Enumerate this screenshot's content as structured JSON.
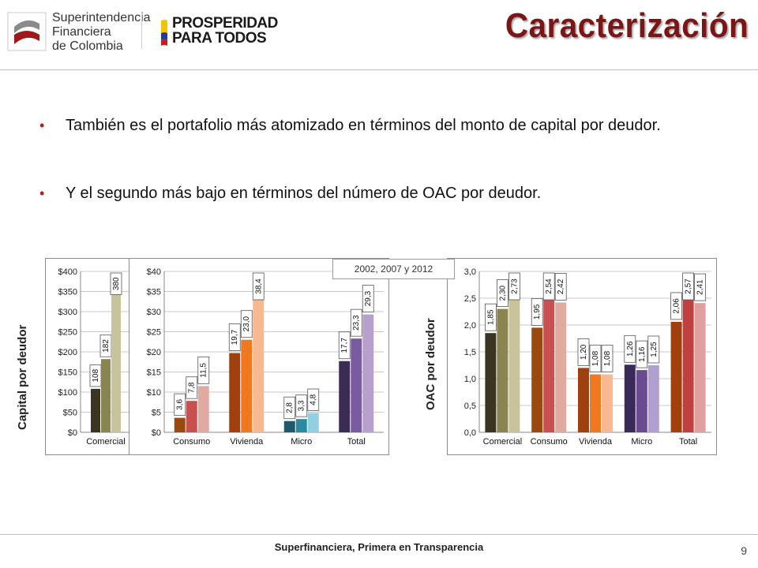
{
  "header": {
    "logo_sfc": {
      "line1": "Superintendencia",
      "line2": "Financiera",
      "line3": "de Colombia"
    },
    "logo_prosperidad": {
      "line1": "PROSPERIDAD",
      "line2": "PARA TODOS"
    },
    "title": "Caracterización"
  },
  "bullets": [
    "También es el portafolio más atomizado en términos del monto de capital por deudor.",
    "Y el segundo más bajo en términos del número de OAC por deudor."
  ],
  "annotation": "2002, 2007 y 2012",
  "side_labels": {
    "capital": "Capital por deudor",
    "oac": "OAC por deudor"
  },
  "footer": {
    "text": "Superfinanciera, Primera en Transparencia",
    "page": "9"
  },
  "colors": {
    "title": "#7a1616",
    "bullet": "#b22222",
    "Comercial": [
      "#3a3520",
      "#8a8450",
      "#c8c39a"
    ],
    "Consumo": [
      "#9a4a10",
      "#c85050",
      "#e0aaa0"
    ],
    "Vivienda": [
      "#a0400e",
      "#f07820",
      "#f8b890"
    ],
    "Micro": [
      "#1c5a6c",
      "#2a8aa0",
      "#90d0e0"
    ],
    "Total": [
      "#3c2c54",
      "#7a5aa0",
      "#b8a0cc"
    ],
    "OAC_Micro": [
      "#3a2a5a",
      "#6a4a90",
      "#b0a0d0"
    ],
    "OAC_Total": [
      "#a0400e",
      "#c04040",
      "#e0a0a0"
    ]
  },
  "chart_data": [
    {
      "type": "bar",
      "categories": [
        "Comercial"
      ],
      "series": [
        {
          "values": [
            108
          ]
        },
        {
          "values": [
            182
          ]
        },
        {
          "values": [
            380
          ]
        }
      ],
      "labels": [
        "108",
        "182",
        "380"
      ],
      "yticks": [
        "$0",
        "$50",
        "$100",
        "$150",
        "$200",
        "$250",
        "$300",
        "$350",
        "$400"
      ],
      "ylim": [
        0,
        400
      ],
      "grid": true
    },
    {
      "type": "bar",
      "categories": [
        "Consumo",
        "Vivienda",
        "Micro",
        "Total"
      ],
      "series": [
        {
          "values": [
            3.6,
            19.7,
            2.8,
            17.7
          ]
        },
        {
          "values": [
            7.8,
            23.0,
            3.3,
            23.3
          ]
        },
        {
          "values": [
            11.5,
            38.4,
            4.8,
            29.3
          ]
        }
      ],
      "labels": [
        [
          "3,6",
          "7,8",
          "11,5"
        ],
        [
          "19,7",
          "23,0",
          "38,4"
        ],
        [
          "2,8",
          "3,3",
          "4,8"
        ],
        [
          "17,7",
          "23,3",
          "29,3"
        ]
      ],
      "yticks": [
        "$0",
        "$5",
        "$10",
        "$15",
        "$20",
        "$25",
        "$30",
        "$35",
        "$40"
      ],
      "ylim": [
        0,
        40
      ],
      "grid": true
    },
    {
      "type": "bar",
      "categories": [
        "Comercial",
        "Consumo",
        "Vivienda",
        "Micro",
        "Total"
      ],
      "series": [
        {
          "values": [
            1.85,
            1.95,
            1.2,
            1.26,
            2.06
          ]
        },
        {
          "values": [
            2.3,
            2.54,
            1.08,
            1.16,
            2.57
          ]
        },
        {
          "values": [
            2.73,
            2.42,
            1.08,
            1.25,
            2.41
          ]
        }
      ],
      "labels": [
        [
          "1,85",
          "2,30",
          "2,73"
        ],
        [
          "1,95",
          "2,54",
          "2,42"
        ],
        [
          "1,20",
          "1,08",
          "1,08"
        ],
        [
          "1,26",
          "1,16",
          "1,25"
        ],
        [
          "2,06",
          "2,57",
          "2,41"
        ]
      ],
      "yticks": [
        "0,0",
        "0,5",
        "1,0",
        "1,5",
        "2,0",
        "2,5",
        "3,0"
      ],
      "ylim": [
        0,
        3
      ],
      "grid": true
    }
  ]
}
